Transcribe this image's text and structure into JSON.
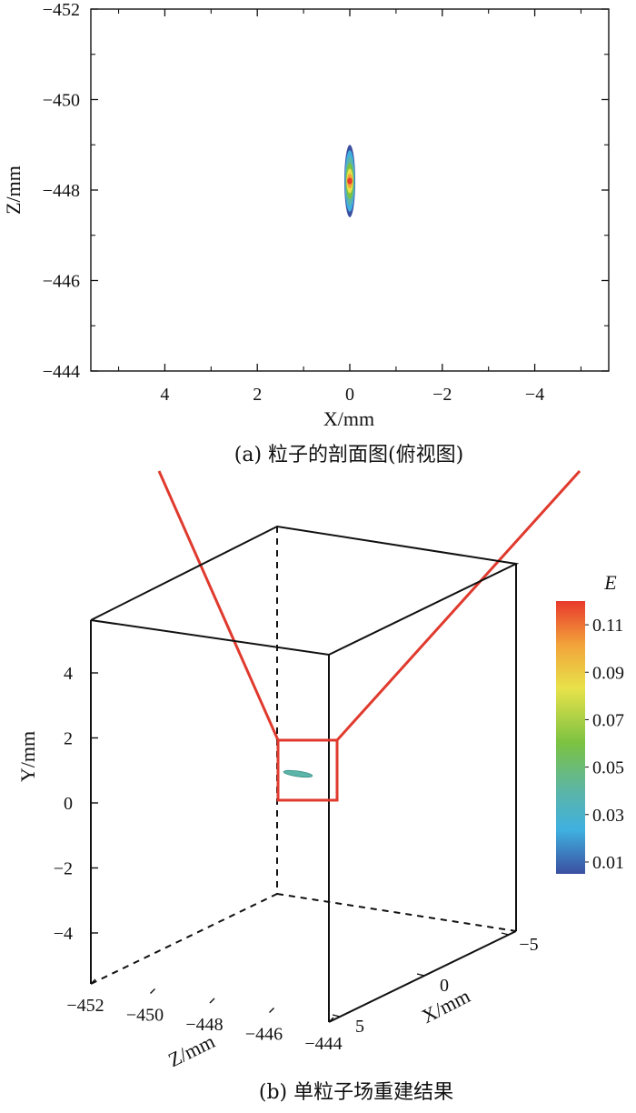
{
  "chart_data": [
    {
      "type": "heatmap",
      "caption": "(a) 粒子的剖面图(俯视图)",
      "xlabel": "X/mm",
      "ylabel": "Z/mm",
      "xlim": [
        5.6,
        -5.6
      ],
      "ylim": [
        -444,
        -452
      ],
      "xticks": [
        "4",
        "2",
        "0",
        "−2",
        "−4"
      ],
      "xtick_values": [
        4,
        2,
        0,
        -2,
        -4
      ],
      "yticks": [
        "−452",
        "−450",
        "−448",
        "−446",
        "−444"
      ],
      "ytick_values": [
        -452,
        -450,
        -448,
        -446,
        -444
      ],
      "particle": {
        "x": 0.0,
        "z": -448.2,
        "x_half_width": 0.06,
        "z_half_height": 0.8
      }
    },
    {
      "type": "scatter",
      "caption": "(b) 单粒子场重建结果",
      "xlabel": "X/mm",
      "ylabel": "Y/mm",
      "zlabel": "Z/mm",
      "yticks": [
        "4",
        "2",
        "0",
        "−2",
        "−4"
      ],
      "ytick_values": [
        4,
        2,
        0,
        -2,
        -4
      ],
      "zticks": [
        "−452",
        "−450",
        "−448",
        "−446",
        "−444"
      ],
      "ztick_values": [
        -452,
        -450,
        -448,
        -446,
        -444
      ],
      "xticks": [
        "−5",
        "0",
        "5"
      ],
      "xtick_values": [
        -5,
        0,
        5
      ],
      "particle": {
        "x": 0.0,
        "y": 0.8,
        "z": -448.2
      },
      "colorbar": {
        "title": "E",
        "ticks": [
          "0.11",
          "0.09",
          "0.07",
          "0.05",
          "0.03",
          "0.01"
        ],
        "tick_values": [
          0.11,
          0.09,
          0.07,
          0.05,
          0.03,
          0.01
        ],
        "range": [
          0.005,
          0.12
        ],
        "colors": [
          "#e8392c",
          "#f2a33a",
          "#e8e24a",
          "#7cc242",
          "#5bb5a8",
          "#3fb0e0",
          "#3b4fa0"
        ]
      }
    }
  ]
}
